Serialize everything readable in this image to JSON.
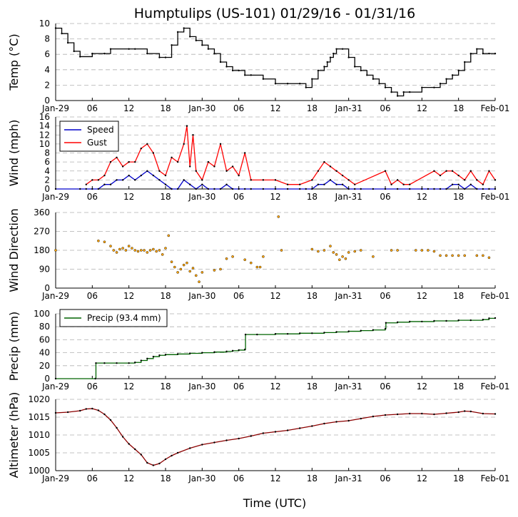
{
  "title": "Humptulips (US-101) 01/29/16 - 01/31/16",
  "xlabel": "Time (UTC)",
  "x_ticks": [
    {
      "hour": 0,
      "label": "Jan-29"
    },
    {
      "hour": 6,
      "label": "06"
    },
    {
      "hour": 12,
      "label": "12"
    },
    {
      "hour": 18,
      "label": "18"
    },
    {
      "hour": 24,
      "label": "Jan-30"
    },
    {
      "hour": 30,
      "label": "06"
    },
    {
      "hour": 36,
      "label": "12"
    },
    {
      "hour": 42,
      "label": "18"
    },
    {
      "hour": 48,
      "label": "Jan-31"
    },
    {
      "hour": 54,
      "label": "06"
    },
    {
      "hour": 60,
      "label": "12"
    },
    {
      "hour": 66,
      "label": "18"
    },
    {
      "hour": 72,
      "label": "Feb-01"
    }
  ],
  "chart_data": [
    {
      "type": "line",
      "title": "Humptulips (US-101) 01/29/16 - 01/31/16",
      "ylabel": "Temp (°C)",
      "ylim": [
        0,
        10
      ],
      "yticks": [
        0,
        2,
        4,
        6,
        8,
        10
      ],
      "xlim_hours": [
        0,
        72
      ],
      "series": [
        {
          "name": "Temp",
          "color": "#000000",
          "x": [
            0,
            1,
            2,
            3,
            4,
            6,
            8,
            9,
            12,
            13,
            15,
            17,
            18,
            19,
            20,
            21,
            22,
            23,
            24,
            25,
            26,
            27,
            28,
            29,
            30,
            31,
            32,
            34,
            36,
            38,
            40,
            41,
            42,
            43,
            44,
            44.5,
            45,
            45.5,
            46,
            47,
            48,
            49,
            50,
            51,
            52,
            53,
            54,
            55,
            56,
            57,
            58,
            60,
            62,
            63,
            64,
            65,
            66,
            67,
            68,
            69,
            70,
            71,
            72
          ],
          "values": [
            9.4,
            8.7,
            7.5,
            6.4,
            5.7,
            6.1,
            6.1,
            6.7,
            6.7,
            6.7,
            6.1,
            5.6,
            5.6,
            7.2,
            8.9,
            9.4,
            8.3,
            7.8,
            7.2,
            6.7,
            6.1,
            5.0,
            4.4,
            3.9,
            3.9,
            3.3,
            3.3,
            2.8,
            2.2,
            2.2,
            2.2,
            1.7,
            2.8,
            3.9,
            4.4,
            5.0,
            5.6,
            6.1,
            6.7,
            6.7,
            5.6,
            4.4,
            3.9,
            3.3,
            2.8,
            2.2,
            1.7,
            1.1,
            0.6,
            1.1,
            1.1,
            1.7,
            1.7,
            2.2,
            2.8,
            3.3,
            3.9,
            5.0,
            6.1,
            6.7,
            6.1,
            6.1,
            6.1
          ]
        }
      ]
    },
    {
      "type": "line",
      "ylabel": "Wind (mph)",
      "ylim": [
        0,
        16
      ],
      "yticks": [
        0,
        2,
        4,
        6,
        8,
        10,
        12,
        14,
        16
      ],
      "legend": "top-left",
      "series": [
        {
          "name": "Speed",
          "color": "#0000cc",
          "x": [
            0,
            4,
            5,
            6,
            7,
            8,
            9,
            10,
            11,
            12,
            13,
            14,
            15,
            16,
            17,
            18,
            19,
            20,
            21,
            22,
            23,
            24,
            25,
            26,
            27,
            28,
            29,
            30,
            31,
            32,
            34,
            36,
            38,
            40,
            41,
            42,
            43,
            44,
            45,
            46,
            47,
            48,
            49,
            50,
            52,
            54,
            56,
            58,
            60,
            61,
            62,
            63,
            64,
            65,
            66,
            67,
            68,
            69,
            70,
            71,
            72
          ],
          "values": [
            0,
            0,
            0,
            0,
            0,
            1,
            1,
            2,
            2,
            3,
            2,
            3,
            4,
            3,
            2,
            1,
            0,
            0,
            2,
            1,
            0,
            1,
            0,
            0,
            0,
            1,
            0,
            0,
            0,
            0,
            0,
            0,
            0,
            0,
            0,
            0,
            1,
            1,
            2,
            1,
            1,
            0,
            0,
            0,
            0,
            0,
            0,
            0,
            0,
            0,
            0,
            0,
            0,
            1,
            1,
            0,
            1,
            0,
            0,
            0,
            0
          ]
        },
        {
          "name": "Gust",
          "color": "#ff0000",
          "x": [
            5,
            6,
            7,
            8,
            9,
            10,
            11,
            12,
            13,
            14,
            15,
            16,
            17,
            18,
            19,
            20,
            21,
            21.5,
            22,
            22.5,
            23,
            24,
            25,
            26,
            27,
            28,
            29,
            30,
            31,
            32,
            34,
            36,
            38,
            40,
            42,
            43,
            44,
            45,
            46,
            47,
            48,
            49,
            54,
            55,
            56,
            57,
            58,
            62,
            63,
            64,
            65,
            66,
            67,
            68,
            69,
            70,
            71,
            72
          ],
          "values": [
            1,
            2,
            2,
            3,
            6,
            7,
            5,
            6,
            6,
            9,
            10,
            8,
            4,
            3,
            7,
            6,
            10,
            14,
            5,
            12,
            4,
            2,
            6,
            5,
            10,
            4,
            5,
            3,
            8,
            2,
            2,
            2,
            1,
            1,
            2,
            4,
            6,
            5,
            4,
            3,
            2,
            1,
            4,
            1,
            2,
            1,
            1,
            4,
            3,
            4,
            4,
            3,
            2,
            4,
            2,
            1,
            4,
            2
          ]
        }
      ]
    },
    {
      "type": "scatter",
      "ylabel": "Wind Direction",
      "ylim": [
        0,
        360
      ],
      "yticks": [
        0,
        90,
        180,
        270,
        360
      ],
      "series": [
        {
          "name": "Direction",
          "color": "#ffa500",
          "x": [
            0,
            7,
            8,
            9,
            9.5,
            10,
            10.5,
            11,
            11.5,
            12,
            12.5,
            13,
            13.5,
            14,
            14.5,
            15,
            15.5,
            16,
            16.5,
            17,
            17.5,
            18,
            18.5,
            19,
            19.5,
            20,
            20.5,
            21,
            21.5,
            22,
            22.5,
            23,
            23.5,
            24,
            26,
            27,
            28,
            29,
            31,
            32,
            33,
            33.5,
            34,
            36.5,
            37,
            42,
            43,
            44,
            45,
            45.5,
            46,
            46.5,
            47,
            47.5,
            48,
            49,
            50,
            52,
            55,
            56,
            59,
            60,
            61,
            62,
            63,
            64,
            65,
            66,
            67,
            69,
            70,
            71
          ],
          "values": [
            180,
            225,
            220,
            200,
            180,
            170,
            185,
            190,
            180,
            200,
            190,
            180,
            175,
            180,
            180,
            170,
            180,
            185,
            175,
            180,
            160,
            190,
            250,
            125,
            100,
            75,
            90,
            110,
            120,
            80,
            95,
            60,
            30,
            75,
            85,
            90,
            140,
            150,
            135,
            120,
            100,
            100,
            150,
            340,
            180,
            185,
            175,
            180,
            200,
            170,
            160,
            135,
            150,
            140,
            170,
            175,
            180,
            150,
            180,
            180,
            180,
            180,
            180,
            175,
            155,
            155,
            155,
            155,
            155,
            155,
            155,
            145
          ]
        }
      ]
    },
    {
      "type": "line",
      "ylabel": "Precip (mm)",
      "ylim": [
        0,
        100
      ],
      "yticks": [
        0,
        20,
        40,
        60,
        80,
        100
      ],
      "legend": "top-left",
      "series": [
        {
          "name": "Precip (93.4 mm)",
          "color": "#006400",
          "x": [
            0,
            6.5,
            6.6,
            8,
            10,
            12,
            13,
            14,
            15,
            16,
            17,
            18,
            20,
            22,
            24,
            26,
            28,
            29,
            30,
            31,
            31.1,
            33,
            36,
            38,
            40,
            42,
            44,
            46,
            48,
            50,
            52,
            54,
            54.1,
            56,
            58,
            60,
            62,
            64,
            66,
            68,
            70,
            71,
            72
          ],
          "values": [
            0,
            0,
            24,
            24,
            24,
            24,
            25,
            28,
            31,
            34,
            36,
            37,
            38,
            39,
            40,
            41,
            42,
            43,
            44,
            45,
            68,
            68,
            69,
            69,
            70,
            70,
            71,
            72,
            73,
            74,
            75,
            77,
            86,
            87,
            88,
            88,
            89,
            89,
            90,
            90,
            91,
            93,
            93.4
          ]
        }
      ]
    },
    {
      "type": "line",
      "ylabel": "Altimeter (hPa)",
      "ylim": [
        1000,
        1020
      ],
      "yticks": [
        1000,
        1005,
        1010,
        1015,
        1020
      ],
      "series": [
        {
          "name": "Altimeter",
          "color": "#8b0000",
          "x": [
            0,
            2,
            4,
            5,
            6,
            7,
            8,
            9,
            10,
            11,
            12,
            13,
            14,
            15,
            16,
            17,
            18,
            19,
            20,
            22,
            24,
            26,
            28,
            30,
            32,
            34,
            36,
            38,
            40,
            42,
            44,
            46,
            48,
            50,
            52,
            54,
            56,
            58,
            60,
            62,
            64,
            66,
            67,
            68,
            70,
            72
          ],
          "values": [
            1016.2,
            1016.4,
            1016.8,
            1017.3,
            1017.4,
            1016.9,
            1015.8,
            1014.2,
            1012.0,
            1009.5,
            1007.5,
            1006.0,
            1004.5,
            1002.2,
            1001.5,
            1002.0,
            1003.2,
            1004.2,
            1005.0,
            1006.3,
            1007.3,
            1007.9,
            1008.5,
            1009.0,
            1009.7,
            1010.5,
            1010.9,
            1011.3,
            1011.9,
            1012.5,
            1013.2,
            1013.7,
            1014.0,
            1014.6,
            1015.2,
            1015.6,
            1015.8,
            1016.0,
            1016.0,
            1015.8,
            1016.1,
            1016.4,
            1016.7,
            1016.6,
            1016.0,
            1015.9
          ]
        }
      ]
    }
  ]
}
